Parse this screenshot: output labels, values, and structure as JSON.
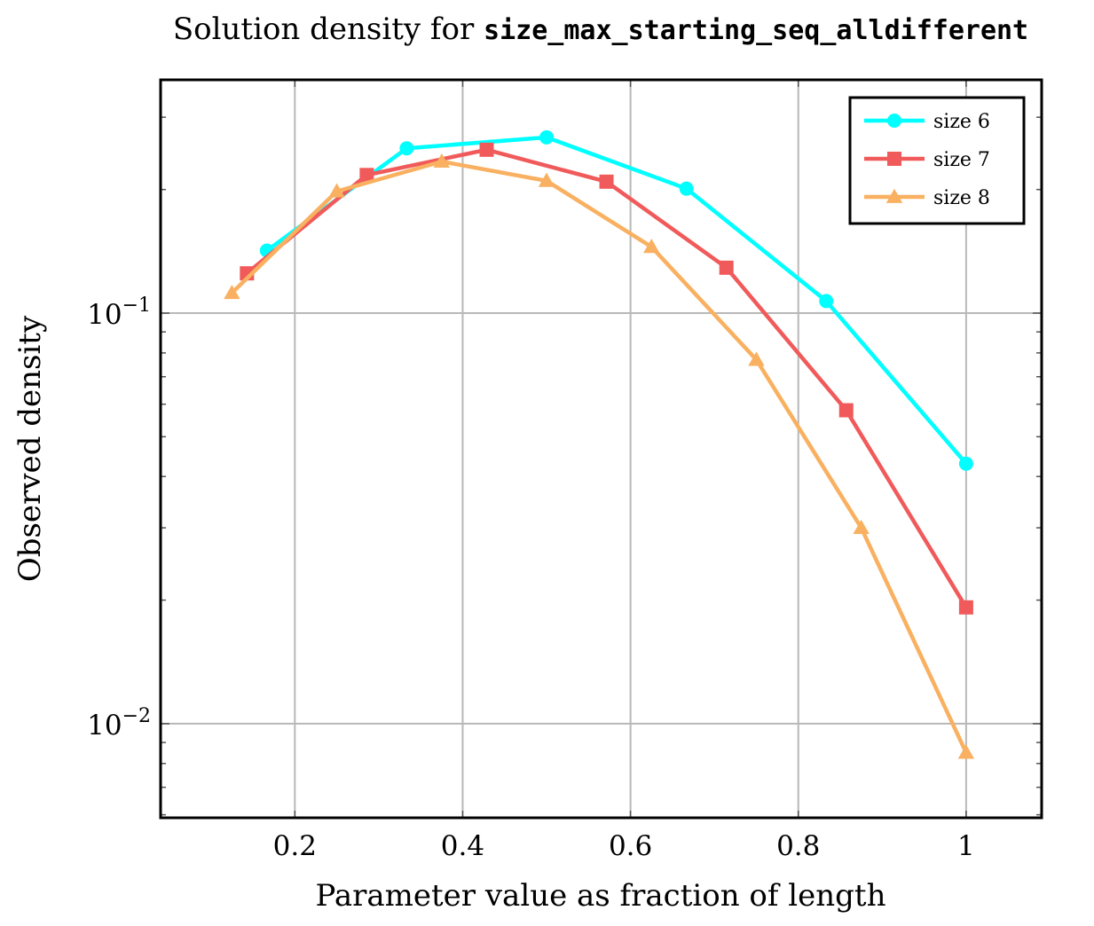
{
  "chart_data": {
    "type": "line",
    "title_prefix": "Solution density for ",
    "title_code": "size_max_starting_seq_alldifferent",
    "xlabel": "Parameter value as fraction of length",
    "ylabel": "Observed density",
    "xlim": [
      0.04,
      1.09
    ],
    "ylim": [
      0.0059,
      0.37
    ],
    "yscale": "log",
    "grid": true,
    "legend_position": "top-right",
    "x_ticks": [
      {
        "value": 0.2,
        "label": "0.2"
      },
      {
        "value": 0.4,
        "label": "0.4"
      },
      {
        "value": 0.6,
        "label": "0.6"
      },
      {
        "value": 0.8,
        "label": "0.8"
      },
      {
        "value": 1.0,
        "label": "1"
      }
    ],
    "y_ticks": [
      {
        "value": 0.1,
        "base": "10",
        "exp": "−1"
      },
      {
        "value": 0.01,
        "base": "10",
        "exp": "−2"
      }
    ],
    "series": [
      {
        "name": "size 6",
        "color": "#00ffff",
        "marker": "circle",
        "points": [
          [
            0.1667,
            0.142
          ],
          [
            0.3333,
            0.252
          ],
          [
            0.5,
            0.268
          ],
          [
            0.6667,
            0.201
          ],
          [
            0.8333,
            0.107
          ],
          [
            1.0,
            0.043
          ]
        ]
      },
      {
        "name": "size 7",
        "color": "#f15a5a",
        "marker": "square",
        "points": [
          [
            0.1429,
            0.125
          ],
          [
            0.2857,
            0.217
          ],
          [
            0.4286,
            0.25
          ],
          [
            0.5714,
            0.209
          ],
          [
            0.7143,
            0.129
          ],
          [
            0.8571,
            0.058
          ],
          [
            1.0,
            0.0192
          ]
        ]
      },
      {
        "name": "size 8",
        "color": "#f9b060",
        "marker": "triangle",
        "points": [
          [
            0.125,
            0.112
          ],
          [
            0.25,
            0.198
          ],
          [
            0.375,
            0.234
          ],
          [
            0.5,
            0.21
          ],
          [
            0.625,
            0.145
          ],
          [
            0.75,
            0.077
          ],
          [
            0.875,
            0.03
          ],
          [
            1.0,
            0.0085
          ]
        ]
      }
    ]
  }
}
